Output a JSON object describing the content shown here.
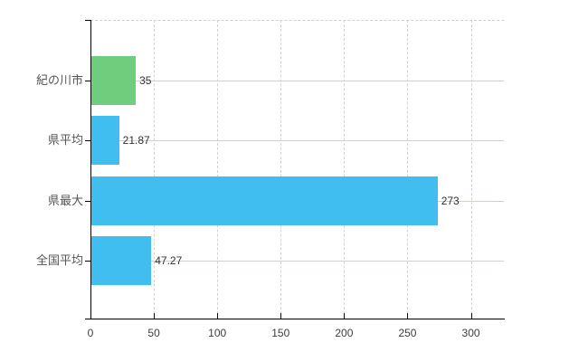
{
  "chart_data": {
    "type": "bar",
    "orientation": "horizontal",
    "title": "",
    "xlabel": "",
    "ylabel": "",
    "categories": [
      "紀の川市",
      "県平均",
      "県最大",
      "全国平均"
    ],
    "values": [
      35,
      21.87,
      273,
      47.27
    ],
    "value_labels": [
      "35",
      "21.87",
      "273",
      "47.27"
    ],
    "bar_colors": [
      "#6FCE7D",
      "#41BEF0",
      "#41BEF0",
      "#41BEF0"
    ],
    "x_ticks": [
      0,
      50,
      100,
      150,
      200,
      250,
      300
    ],
    "x_tick_labels": [
      "0",
      "50",
      "100",
      "150",
      "200",
      "250",
      "300"
    ],
    "xlim": [
      0,
      326
    ],
    "grid": true,
    "legend": false
  },
  "colors": {
    "bar_green": "#6FCE7D",
    "bar_blue": "#41BEF0",
    "axis": "#000000",
    "grid_vertical": "#d2d2d2",
    "grid_horizontal": "#ccd4cc",
    "tick_text": "#3c3c3c",
    "category_text": "#555555",
    "value_text": "#333333",
    "background": "#ffffff"
  }
}
